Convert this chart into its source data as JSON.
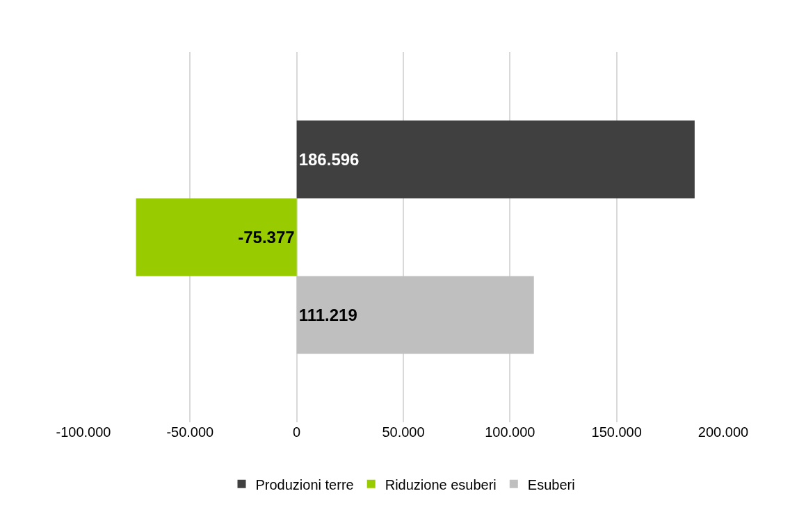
{
  "chart_data": {
    "type": "bar",
    "orientation": "horizontal",
    "categories": [
      null
    ],
    "series": [
      {
        "name": "Produzioni terre",
        "color": "#404040",
        "values": [
          186596
        ],
        "value_labels": [
          "186.596"
        ]
      },
      {
        "name": "Riduzione esuberi",
        "color": "#99cc00",
        "values": [
          -75377
        ],
        "value_labels": [
          "-75.377"
        ]
      },
      {
        "name": "Esuberi",
        "color": "#bfbfbf",
        "values": [
          111219
        ],
        "value_labels": [
          "111.219"
        ]
      }
    ],
    "xlim": [
      -100000,
      200000
    ],
    "xticks": [
      {
        "value": -100000,
        "label": "-100.000"
      },
      {
        "value": -50000,
        "label": "-50.000"
      },
      {
        "value": 0,
        "label": "0"
      },
      {
        "value": 50000,
        "label": "50.000"
      },
      {
        "value": 100000,
        "label": "100.000"
      },
      {
        "value": 150000,
        "label": "150.000"
      },
      {
        "value": 200000,
        "label": "200.000"
      }
    ],
    "grid": "x",
    "legend": "bottom",
    "tick_labels": "x"
  }
}
